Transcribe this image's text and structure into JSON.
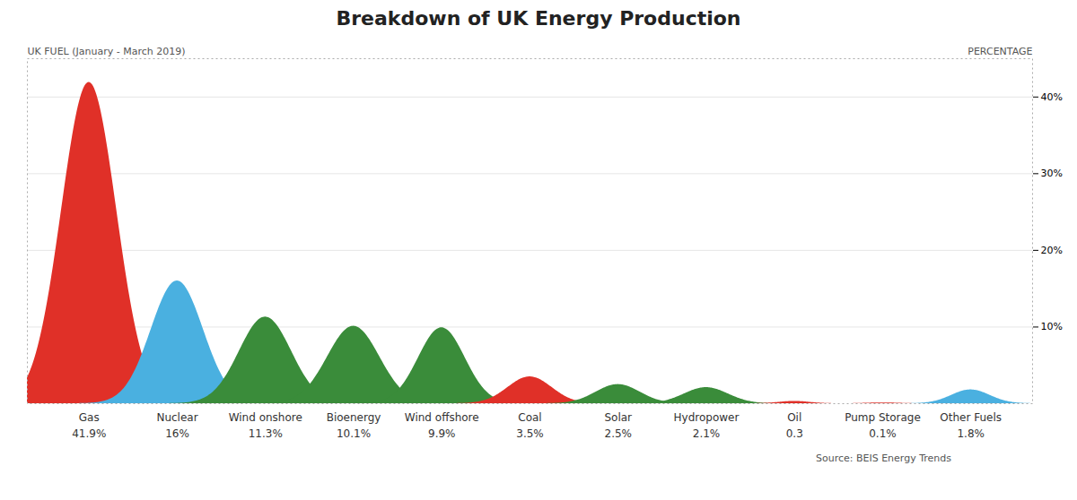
{
  "chart_data": {
    "type": "area",
    "title": "Breakdown of UK Energy Production",
    "subtitle": "UK FUEL (January - March 2019)",
    "right_label": "PERCENTAGE",
    "source": "Source: BEIS Energy Trends",
    "categories": [
      "Gas",
      "Nuclear",
      "Wind onshore",
      "Bioenergy",
      "Wind offshore",
      "Coal",
      "Solar",
      "Hydropower",
      "Oil",
      "Pump Storage",
      "Other Fuels"
    ],
    "values": [
      41.9,
      16.0,
      11.3,
      10.1,
      9.9,
      3.5,
      2.5,
      2.1,
      0.3,
      0.1,
      1.8
    ],
    "value_labels": [
      "41.9%",
      "16%",
      "11.3%",
      "10.1%",
      "9.9%",
      "3.5%",
      "2.5%",
      "2.1%",
      "0.3",
      "0.1%",
      "1.8%"
    ],
    "colors": [
      "#e03028",
      "#4ab0e0",
      "#3a8c3a",
      "#3a8c3a",
      "#3a8c3a",
      "#e03028",
      "#3a8c3a",
      "#3a8c3a",
      "#e03028",
      "#e03028",
      "#4ab0e0"
    ],
    "ylim": [
      0,
      45
    ],
    "yticks": [
      {
        "value": 10,
        "label": "10%"
      },
      {
        "value": 20,
        "label": "20%"
      },
      {
        "value": 30,
        "label": "30%"
      },
      {
        "value": 40,
        "label": "40%"
      }
    ],
    "grid": true,
    "data_labels": true
  }
}
